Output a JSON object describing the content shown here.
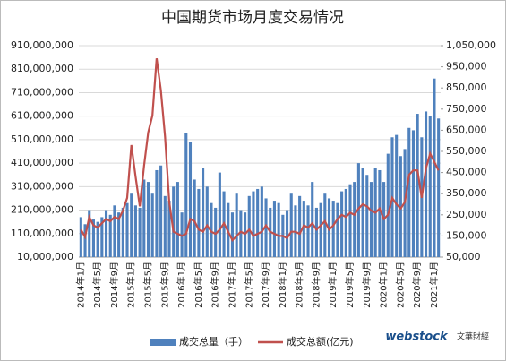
{
  "chart_data": {
    "type": "bar_line",
    "title": "中国期货市场月度交易情况",
    "categories": [
      "2014年1月",
      null,
      null,
      null,
      "2014年5月",
      null,
      null,
      null,
      "2014年9月",
      null,
      null,
      null,
      "2015年1月",
      null,
      null,
      null,
      "2015年5月",
      null,
      null,
      null,
      "2015年9月",
      null,
      null,
      null,
      "2016年1月",
      null,
      null,
      null,
      "2016年5月",
      null,
      null,
      null,
      "2016年9月",
      null,
      null,
      null,
      "2017年1月",
      null,
      null,
      null,
      "2017年5月",
      null,
      null,
      null,
      "2017年9月",
      null,
      null,
      null,
      "2018年1月",
      null,
      null,
      null,
      "2018年5月",
      null,
      null,
      null,
      "2018年9月",
      null,
      null,
      null,
      "2019年1月",
      null,
      null,
      null,
      "2019年5月",
      null,
      null,
      null,
      "2019年9月",
      null,
      null,
      null,
      "2020年1月",
      null,
      null,
      null,
      "2020年5月",
      null,
      null,
      null,
      "2020年9月",
      null,
      null,
      null,
      "2021年1月",
      null
    ],
    "series": [
      {
        "name": "成交总量（手）",
        "type": "bar",
        "color": "#4f81bd",
        "values": [
          180000000,
          150000000,
          210000000,
          170000000,
          160000000,
          180000000,
          210000000,
          190000000,
          230000000,
          200000000,
          220000000,
          240000000,
          280000000,
          230000000,
          220000000,
          340000000,
          330000000,
          280000000,
          380000000,
          400000000,
          270000000,
          250000000,
          310000000,
          330000000,
          200000000,
          540000000,
          500000000,
          340000000,
          300000000,
          390000000,
          310000000,
          240000000,
          220000000,
          370000000,
          290000000,
          240000000,
          200000000,
          280000000,
          210000000,
          200000000,
          270000000,
          290000000,
          300000000,
          310000000,
          260000000,
          220000000,
          250000000,
          240000000,
          190000000,
          210000000,
          280000000,
          230000000,
          270000000,
          250000000,
          230000000,
          330000000,
          220000000,
          240000000,
          280000000,
          260000000,
          250000000,
          240000000,
          290000000,
          300000000,
          320000000,
          330000000,
          410000000,
          390000000,
          360000000,
          330000000,
          390000000,
          380000000,
          330000000,
          450000000,
          520000000,
          530000000,
          440000000,
          470000000,
          560000000,
          550000000,
          620000000,
          520000000,
          630000000,
          610000000,
          770000000,
          600000000
        ]
      },
      {
        "name": "成交总额(亿元)",
        "type": "line",
        "axis": "y2",
        "color": "#c0504d",
        "values": [
          180000,
          145000,
          240000,
          200000,
          190000,
          210000,
          230000,
          220000,
          240000,
          230000,
          270000,
          330000,
          580000,
          430000,
          290000,
          480000,
          640000,
          720000,
          990000,
          840000,
          620000,
          310000,
          170000,
          160000,
          150000,
          160000,
          230000,
          220000,
          180000,
          170000,
          200000,
          170000,
          160000,
          180000,
          210000,
          170000,
          130000,
          150000,
          170000,
          160000,
          180000,
          150000,
          160000,
          170000,
          200000,
          170000,
          160000,
          150000,
          150000,
          140000,
          170000,
          170000,
          160000,
          200000,
          190000,
          210000,
          180000,
          200000,
          220000,
          180000,
          200000,
          230000,
          250000,
          240000,
          260000,
          250000,
          280000,
          300000,
          290000,
          270000,
          260000,
          280000,
          230000,
          250000,
          330000,
          300000,
          280000,
          310000,
          440000,
          460000,
          460000,
          330000,
          470000,
          540000,
          500000,
          460000
        ]
      }
    ],
    "ylim": [
      10000000,
      910000000
    ],
    "yticks": [
      {
        "value": 10000000,
        "label": "10,000,000"
      },
      {
        "value": 110000000,
        "label": "110,000,000"
      },
      {
        "value": 210000000,
        "label": "210,000,000"
      },
      {
        "value": 310000000,
        "label": "310,000,000"
      },
      {
        "value": 410000000,
        "label": "410,000,000"
      },
      {
        "value": 510000000,
        "label": "510,000,000"
      },
      {
        "value": 610000000,
        "label": "610,000,000"
      },
      {
        "value": 710000000,
        "label": "710,000,000"
      },
      {
        "value": 810000000,
        "label": "810,000,000"
      },
      {
        "value": 910000000,
        "label": "910,000,000"
      }
    ],
    "y2lim": [
      50000,
      1050000
    ],
    "y2ticks": [
      {
        "value": 50000,
        "label": "50,000"
      },
      {
        "value": 150000,
        "label": "150,000"
      },
      {
        "value": 250000,
        "label": "250,000"
      },
      {
        "value": 350000,
        "label": "350,000"
      },
      {
        "value": 450000,
        "label": "450,000"
      },
      {
        "value": 550000,
        "label": "550,000"
      },
      {
        "value": 650000,
        "label": "650,000"
      },
      {
        "value": 750000,
        "label": "750,000"
      },
      {
        "value": 850000,
        "label": "850,000"
      },
      {
        "value": 950000,
        "label": "950,000"
      },
      {
        "value": 1050000,
        "label": "1,050,000"
      }
    ],
    "grid": true,
    "legend": "bottom",
    "watermark": "webstock",
    "watermark_sub": "文華財經"
  }
}
